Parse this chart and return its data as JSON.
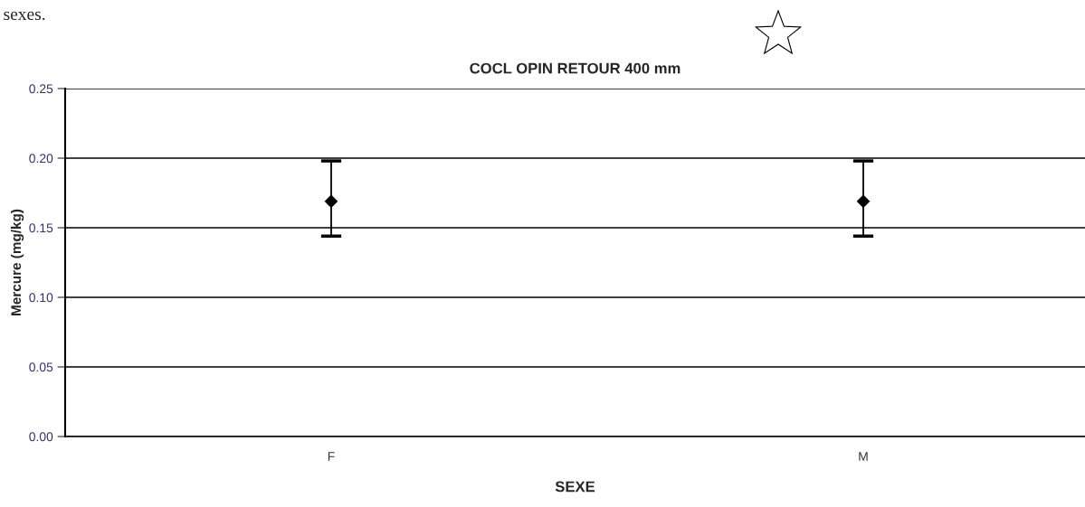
{
  "chart_data": {
    "type": "scatter",
    "title": "COCL OPIN RETOUR 400 mm",
    "xlabel": "SEXE",
    "ylabel": "Mercure (mg/kg)",
    "categories": [
      "F",
      "M"
    ],
    "series": [
      {
        "color": "#000000",
        "values": [
          0.169,
          0.169
        ],
        "errors": [
          [
            0.144,
            0.198
          ],
          [
            0.144,
            0.198
          ]
        ]
      }
    ],
    "ylim": [
      0,
      0.25
    ],
    "yticks": [
      {
        "value": 0,
        "label": "0.00"
      },
      {
        "value": 0.05,
        "label": "0.05"
      },
      {
        "value": 0.1,
        "label": "0.10"
      },
      {
        "value": 0.15,
        "label": "0.15"
      },
      {
        "value": 0.2,
        "label": "0.20"
      },
      {
        "value": 0.25,
        "label": "0.25"
      }
    ],
    "grid": "y",
    "marker": "diamond",
    "legend": false,
    "annotations": [
      "sexes."
    ]
  }
}
